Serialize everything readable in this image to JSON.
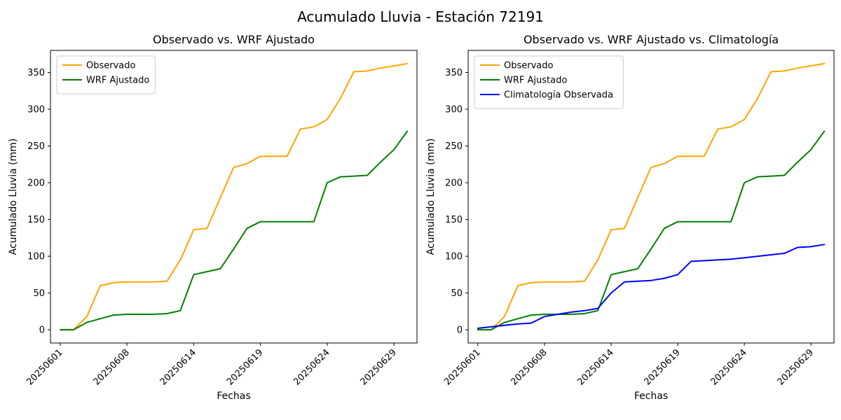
{
  "figure": {
    "suptitle": "Acumulado Lluvia - Estación 72191",
    "background": "#ffffff"
  },
  "chart_data": [
    {
      "type": "line",
      "title": "Observado vs. WRF Ajustado",
      "xlabel": "Fechas",
      "ylabel": "Acumulado Lluvia (mm)",
      "ylim": [
        -18,
        380
      ],
      "yticks": [
        0,
        50,
        100,
        150,
        200,
        250,
        300,
        350
      ],
      "grid": false,
      "legend_position": "upper left",
      "x": [
        "20250601",
        "20250603",
        "20250604",
        "20250605",
        "20250606",
        "20250608",
        "20250609",
        "20250610",
        "20250611",
        "20250612",
        "20250614",
        "20250615",
        "20250616",
        "20250617",
        "20250618",
        "20250619",
        "20250620",
        "20250621",
        "20250622",
        "20250623",
        "20250624",
        "20250625",
        "20250626",
        "20250627",
        "20250628",
        "20250629",
        "20250630"
      ],
      "xtick_indices": [
        0,
        5,
        10,
        15,
        20,
        25
      ],
      "xtick_labels": [
        "20250601",
        "20250608",
        "20250614",
        "20250619",
        "20250624",
        "20250629"
      ],
      "series": [
        {
          "name": "Observado",
          "color": "#ffa500",
          "values": [
            0,
            0,
            18,
            60,
            64,
            65,
            65,
            65,
            66,
            95,
            136,
            138,
            180,
            221,
            226,
            236,
            236,
            236,
            273,
            276,
            286,
            315,
            351,
            352,
            356,
            359,
            362
          ]
        },
        {
          "name": "WRF Ajustado",
          "color": "#008000",
          "values": [
            0,
            0,
            10,
            15,
            20,
            21,
            21,
            21,
            22,
            26,
            75,
            79,
            83,
            110,
            138,
            147,
            147,
            147,
            147,
            147,
            200,
            208,
            209,
            210,
            228,
            245,
            270
          ]
        }
      ]
    },
    {
      "type": "line",
      "title": "Observado vs. WRF Ajustado vs. Climatología",
      "xlabel": "Fechas",
      "ylabel": "Acumulado Lluvia (mm)",
      "ylim": [
        -18,
        380
      ],
      "yticks": [
        0,
        50,
        100,
        150,
        200,
        250,
        300,
        350
      ],
      "grid": false,
      "legend_position": "upper left",
      "x": [
        "20250601",
        "20250603",
        "20250604",
        "20250605",
        "20250606",
        "20250608",
        "20250609",
        "20250610",
        "20250611",
        "20250612",
        "20250614",
        "20250615",
        "20250616",
        "20250617",
        "20250618",
        "20250619",
        "20250620",
        "20250621",
        "20250622",
        "20250623",
        "20250624",
        "20250625",
        "20250626",
        "20250627",
        "20250628",
        "20250629",
        "20250630"
      ],
      "xtick_indices": [
        0,
        5,
        10,
        15,
        20,
        25
      ],
      "xtick_labels": [
        "20250601",
        "20250608",
        "20250614",
        "20250619",
        "20250624",
        "20250629"
      ],
      "series": [
        {
          "name": "Observado",
          "color": "#ffa500",
          "values": [
            0,
            0,
            18,
            60,
            64,
            65,
            65,
            65,
            66,
            95,
            136,
            138,
            180,
            221,
            226,
            236,
            236,
            236,
            273,
            276,
            286,
            315,
            351,
            352,
            356,
            359,
            362
          ]
        },
        {
          "name": "WRF Ajustado",
          "color": "#008000",
          "values": [
            0,
            0,
            10,
            15,
            20,
            21,
            21,
            21,
            22,
            26,
            75,
            79,
            83,
            110,
            138,
            147,
            147,
            147,
            147,
            147,
            200,
            208,
            209,
            210,
            228,
            245,
            270
          ]
        },
        {
          "name": "Climatología Observada",
          "color": "#0000ff",
          "values": [
            2,
            4,
            6,
            8,
            9,
            18,
            21,
            24,
            26,
            29,
            50,
            65,
            66,
            67,
            70,
            75,
            93,
            94,
            95,
            96,
            98,
            100,
            102,
            104,
            112,
            113,
            116
          ]
        }
      ]
    }
  ]
}
